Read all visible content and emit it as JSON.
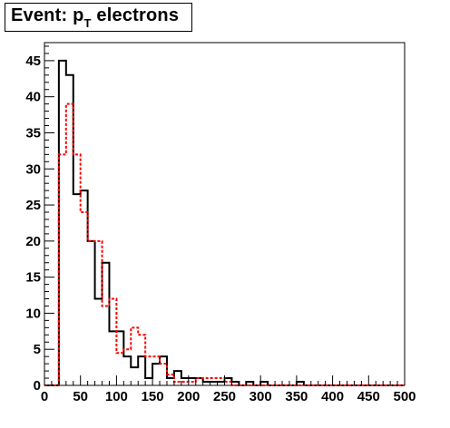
{
  "title": {
    "main": "Event: p",
    "subscript": "T",
    "rest": " electrons"
  },
  "chart_data": {
    "type": "histogram",
    "title": "Event: p_T electrons",
    "xlabel": "",
    "ylabel": "",
    "xlim": [
      0,
      500
    ],
    "ylim": [
      0,
      47.5
    ],
    "grid": false,
    "legend": "none",
    "bin_width": 10,
    "x_ticks": [
      0,
      50,
      100,
      150,
      200,
      250,
      300,
      350,
      400,
      450,
      500
    ],
    "y_ticks": [
      0,
      5,
      10,
      15,
      20,
      25,
      30,
      35,
      40,
      45
    ],
    "series": [
      {
        "color": "#000000",
        "style": "solid",
        "bin_edges": [
          0,
          10,
          20,
          30,
          40,
          50,
          60,
          70,
          80,
          90,
          100,
          110,
          120,
          130,
          140,
          150,
          160,
          170,
          180,
          190,
          200,
          210,
          220,
          230,
          240,
          250,
          260,
          270,
          280,
          290,
          300,
          310,
          320,
          330,
          340,
          350,
          360,
          370,
          380,
          390,
          400,
          410,
          420,
          430,
          440,
          450,
          460,
          470,
          480,
          490,
          500
        ],
        "values": [
          0,
          0,
          45,
          43,
          26.5,
          27,
          20,
          12,
          17,
          7.5,
          7.5,
          4,
          2.5,
          4,
          1,
          3,
          4,
          1,
          2,
          1,
          1,
          1,
          0.5,
          0.5,
          0.5,
          1,
          0.5,
          0,
          0.5,
          0,
          0.5,
          0,
          0,
          0,
          0,
          0.5,
          0,
          0,
          0,
          0,
          0,
          0,
          0,
          0,
          0,
          0,
          0,
          0,
          0,
          0
        ]
      },
      {
        "color": "#ff0000",
        "style": "dashed",
        "bin_edges": [
          0,
          10,
          20,
          30,
          40,
          50,
          60,
          70,
          80,
          90,
          100,
          110,
          120,
          130,
          140,
          150,
          160,
          170,
          180,
          190,
          200,
          210,
          220,
          230,
          240,
          250,
          260,
          270,
          280,
          290,
          300,
          310,
          320,
          330,
          340,
          350,
          360,
          370,
          380,
          390,
          400,
          410,
          420,
          430,
          440,
          450,
          460,
          470,
          480,
          490,
          500
        ],
        "values": [
          0,
          0,
          32,
          39,
          32,
          24,
          20,
          20,
          11,
          12,
          4.5,
          5,
          8,
          7,
          4,
          4,
          3,
          1.5,
          0.5,
          0.5,
          0.5,
          1,
          1,
          1,
          1,
          0.5,
          0,
          0,
          0,
          0,
          0,
          0,
          0,
          0,
          0,
          0,
          0,
          0,
          0,
          0,
          0,
          0,
          0,
          0,
          0,
          0,
          0,
          0,
          0,
          0
        ]
      }
    ]
  }
}
